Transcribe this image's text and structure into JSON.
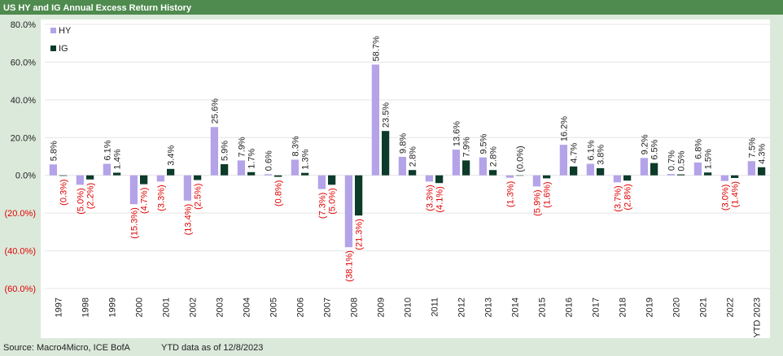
{
  "chart_data": {
    "type": "bar",
    "title": "US HY and IG Annual Excess Return History",
    "source": "Source: Macro4Micro, ICE BofA",
    "note": "YTD data as of 12/8/2023",
    "categories": [
      "1997",
      "1998",
      "1999",
      "2000",
      "2001",
      "2002",
      "2003",
      "2004",
      "2005",
      "2006",
      "2007",
      "2008",
      "2009",
      "2010",
      "2011",
      "2012",
      "2013",
      "2014",
      "2015",
      "2016",
      "2017",
      "2018",
      "2019",
      "2020",
      "2021",
      "2022",
      "YTD 2023"
    ],
    "series": [
      {
        "name": "HY",
        "color": "#b4a3e8",
        "values": [
          5.8,
          -5.0,
          6.1,
          -15.3,
          -3.3,
          -13.4,
          25.6,
          7.9,
          0.6,
          8.3,
          -7.3,
          -38.1,
          58.7,
          9.8,
          -3.3,
          13.6,
          9.5,
          -1.3,
          -5.9,
          16.2,
          6.1,
          -3.7,
          9.2,
          0.7,
          6.8,
          -3.0,
          7.5
        ],
        "value_labels": [
          "5.8%",
          "(5.0%)",
          "6.1%",
          "(15.3%)",
          "(3.3%)",
          "(13.4%)",
          "25.6%",
          "7.9%",
          "0.6%",
          "8.3%",
          "(7.3%)",
          "(38.1%)",
          "58.7%",
          "9.8%",
          "(3.3%)",
          "13.6%",
          "9.5%",
          "(1.3%)",
          "(5.9%)",
          "16.2%",
          "6.1%",
          "(3.7%)",
          "9.2%",
          "0.7%",
          "6.8%",
          "(3.0%)",
          "7.5%"
        ]
      },
      {
        "name": "IG",
        "color": "#0c3b2a",
        "values": [
          -0.3,
          -2.2,
          1.4,
          -4.7,
          3.4,
          -2.5,
          5.9,
          1.7,
          -0.8,
          1.3,
          -5.0,
          -21.3,
          23.5,
          2.8,
          -4.1,
          7.9,
          2.8,
          0,
          -1.6,
          4.7,
          3.8,
          -2.8,
          6.5,
          0.5,
          1.5,
          -1.4,
          4.3
        ],
        "value_labels": [
          "(0.3%)",
          "(2.2%)",
          "1.4%",
          "(4.7%)",
          "3.4%",
          "(2.5%)",
          "5.9%",
          "1.7%",
          "(0.8%)",
          "1.3%",
          "(5.0%)",
          "(21.3%)",
          "23.5%",
          "2.8%",
          "(4.1%)",
          "7.9%",
          "2.8%",
          "(0.0%)",
          "(1.6%)",
          "4.7%",
          "3.8%",
          "(2.8%)",
          "6.5%",
          "0.5%",
          "1.5%",
          "(1.4%)",
          "4.3%"
        ]
      }
    ],
    "ylim": [
      -60,
      80
    ],
    "yticks": [
      {
        "value": -60,
        "label": "(60.0%)"
      },
      {
        "value": -40,
        "label": "(40.0%)"
      },
      {
        "value": -20,
        "label": "(20.0%)"
      },
      {
        "value": 0,
        "label": "0.0%"
      },
      {
        "value": 20,
        "label": "20.0%"
      },
      {
        "value": 40,
        "label": "40.0%"
      },
      {
        "value": 60,
        "label": "60.0%"
      },
      {
        "value": 80,
        "label": "80.0%"
      }
    ],
    "grid": true,
    "legend": "top-left"
  }
}
